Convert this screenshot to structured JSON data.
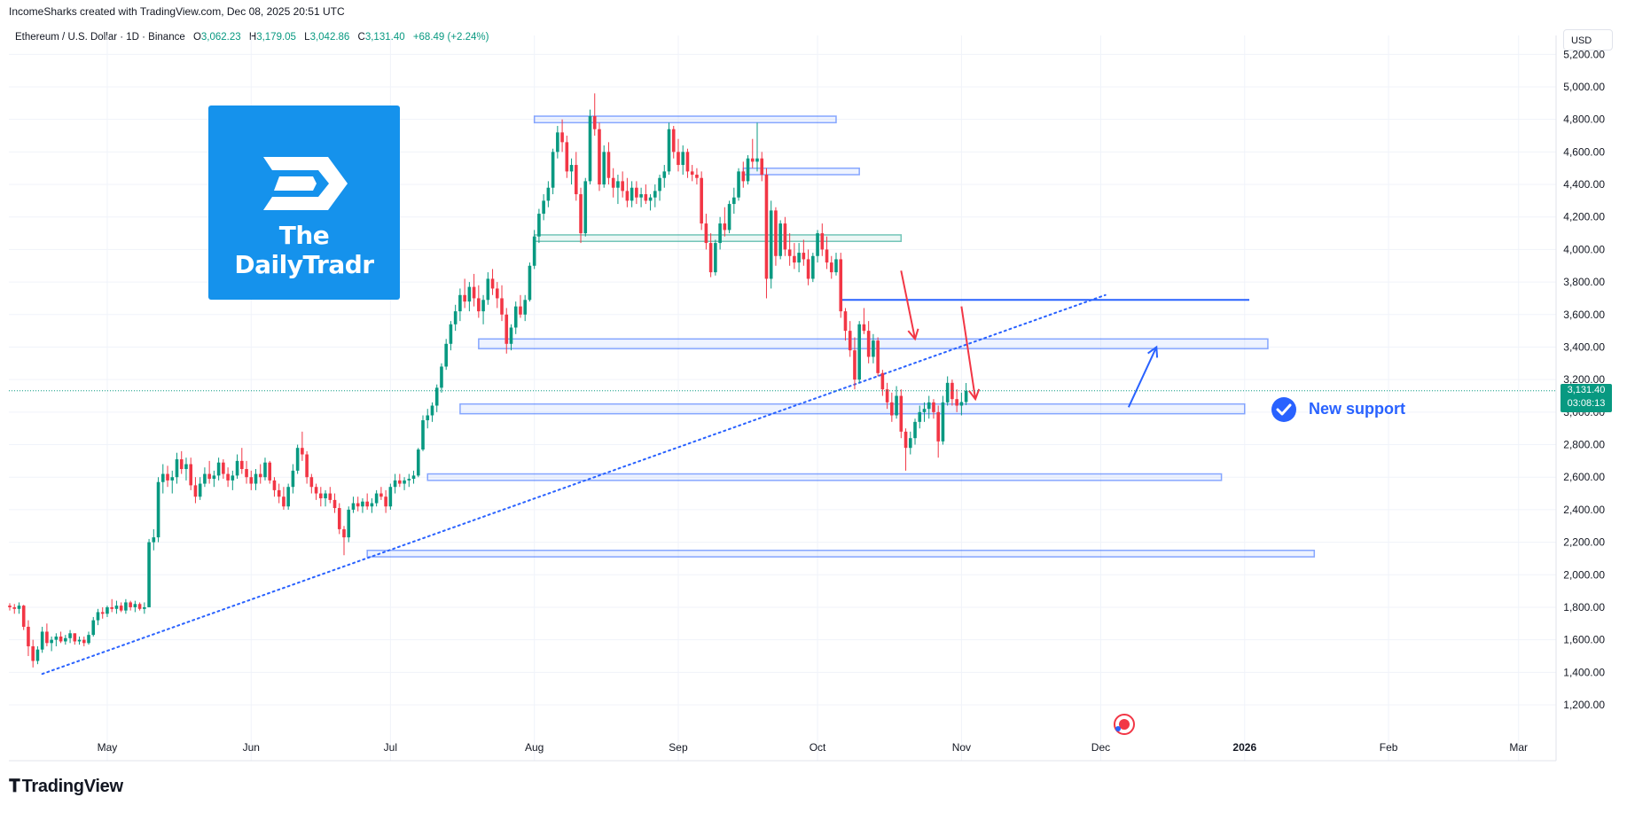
{
  "header": {
    "attribution": "IncomeSharks created with TradingView.com, Dec 08, 2025 20:51 UTC"
  },
  "symbol": {
    "name": "Ethereum / U.S. Dollar · 1D · Binance",
    "open_label": "O",
    "open": "3,062.23",
    "high_label": "H",
    "high": "3,179.05",
    "low_label": "L",
    "low": "3,042.86",
    "close_label": "C",
    "close": "3,131.40",
    "change": "+68.49 (+2.24%)"
  },
  "currency": "USD",
  "last_price": {
    "price": "3,131.40",
    "countdown": "03:08:13"
  },
  "logo": {
    "text": "The DailyTradr"
  },
  "annotation": {
    "support_label": "New support"
  },
  "footer": {
    "brand": "TradingView"
  },
  "colors": {
    "up": "#089981",
    "down": "#f23645",
    "zone_blue": "#2962ff",
    "zone_green": "#089981",
    "logo_bg": "#1592ec",
    "arrow_red": "#f23645",
    "arrow_blue": "#2962ff"
  },
  "chart_data": {
    "type": "candlestick",
    "title": "Ethereum / U.S. Dollar · 1D · Binance",
    "ylim": [
      1150,
      5250
    ],
    "price_ticks": [
      "5,200.00",
      "5,000.00",
      "4,800.00",
      "4,600.00",
      "4,400.00",
      "4,200.00",
      "4,000.00",
      "3,800.00",
      "3,600.00",
      "3,400.00",
      "3,200.00",
      "3,000.00",
      "2,800.00",
      "2,600.00",
      "2,400.00",
      "2,200.00",
      "2,000.00",
      "1,800.00",
      "1,600.00",
      "1,400.00",
      "1,200.00"
    ],
    "price_tick_values": [
      5200,
      5000,
      4800,
      4600,
      4400,
      4200,
      4000,
      3800,
      3600,
      3400,
      3200,
      3000,
      2800,
      2600,
      2400,
      2200,
      2000,
      1800,
      1600,
      1400,
      1200
    ],
    "time_ticks": [
      {
        "label": "May",
        "day": 21
      },
      {
        "label": "Jun",
        "day": 52
      },
      {
        "label": "Jul",
        "day": 82
      },
      {
        "label": "Aug",
        "day": 113
      },
      {
        "label": "Sep",
        "day": 144
      },
      {
        "label": "Oct",
        "day": 174
      },
      {
        "label": "Nov",
        "day": 205
      },
      {
        "label": "Dec",
        "day": 235
      },
      {
        "label": "2026",
        "day": 266,
        "bold": true
      },
      {
        "label": "Feb",
        "day": 297
      },
      {
        "label": "Mar",
        "day": 325
      }
    ],
    "candles": [
      [
        1810,
        1825,
        1780,
        1800
      ],
      [
        1800,
        1820,
        1760,
        1790
      ],
      [
        1790,
        1830,
        1760,
        1810
      ],
      [
        1810,
        1815,
        1660,
        1680
      ],
      [
        1680,
        1720,
        1500,
        1560
      ],
      [
        1560,
        1600,
        1430,
        1470
      ],
      [
        1470,
        1560,
        1450,
        1540
      ],
      [
        1540,
        1680,
        1520,
        1650
      ],
      [
        1650,
        1700,
        1560,
        1580
      ],
      [
        1580,
        1620,
        1530,
        1600
      ],
      [
        1600,
        1640,
        1560,
        1620
      ],
      [
        1620,
        1650,
        1580,
        1590
      ],
      [
        1590,
        1630,
        1570,
        1610
      ],
      [
        1610,
        1660,
        1580,
        1640
      ],
      [
        1640,
        1640,
        1570,
        1590
      ],
      [
        1590,
        1620,
        1570,
        1600
      ],
      [
        1600,
        1620,
        1560,
        1580
      ],
      [
        1580,
        1650,
        1570,
        1630
      ],
      [
        1630,
        1740,
        1620,
        1720
      ],
      [
        1720,
        1790,
        1690,
        1770
      ],
      [
        1770,
        1800,
        1730,
        1760
      ],
      [
        1760,
        1810,
        1740,
        1800
      ],
      [
        1800,
        1850,
        1770,
        1790
      ],
      [
        1790,
        1840,
        1760,
        1810
      ],
      [
        1810,
        1830,
        1770,
        1780
      ],
      [
        1780,
        1850,
        1760,
        1830
      ],
      [
        1830,
        1840,
        1780,
        1800
      ],
      [
        1800,
        1840,
        1770,
        1820
      ],
      [
        1820,
        1830,
        1780,
        1790
      ],
      [
        1790,
        1830,
        1760,
        1800
      ],
      [
        1800,
        2220,
        1800,
        2200
      ],
      [
        2200,
        2280,
        2150,
        2230
      ],
      [
        2230,
        2600,
        2200,
        2570
      ],
      [
        2570,
        2680,
        2500,
        2620
      ],
      [
        2620,
        2670,
        2540,
        2580
      ],
      [
        2580,
        2640,
        2500,
        2600
      ],
      [
        2600,
        2750,
        2560,
        2710
      ],
      [
        2710,
        2760,
        2620,
        2650
      ],
      [
        2650,
        2720,
        2580,
        2680
      ],
      [
        2680,
        2720,
        2520,
        2550
      ],
      [
        2550,
        2600,
        2440,
        2480
      ],
      [
        2480,
        2600,
        2460,
        2560
      ],
      [
        2560,
        2660,
        2540,
        2620
      ],
      [
        2620,
        2700,
        2560,
        2590
      ],
      [
        2590,
        2640,
        2540,
        2610
      ],
      [
        2610,
        2720,
        2580,
        2690
      ],
      [
        2690,
        2710,
        2590,
        2620
      ],
      [
        2620,
        2660,
        2540,
        2580
      ],
      [
        2580,
        2640,
        2520,
        2610
      ],
      [
        2610,
        2740,
        2590,
        2700
      ],
      [
        2700,
        2780,
        2620,
        2650
      ],
      [
        2650,
        2700,
        2560,
        2600
      ],
      [
        2600,
        2640,
        2520,
        2560
      ],
      [
        2560,
        2650,
        2520,
        2620
      ],
      [
        2620,
        2680,
        2560,
        2600
      ],
      [
        2600,
        2720,
        2580,
        2690
      ],
      [
        2690,
        2700,
        2560,
        2580
      ],
      [
        2580,
        2600,
        2480,
        2520
      ],
      [
        2520,
        2560,
        2440,
        2480
      ],
      [
        2480,
        2540,
        2400,
        2420
      ],
      [
        2420,
        2560,
        2400,
        2540
      ],
      [
        2540,
        2680,
        2500,
        2640
      ],
      [
        2640,
        2800,
        2620,
        2780
      ],
      [
        2780,
        2880,
        2700,
        2740
      ],
      [
        2740,
        2760,
        2560,
        2600
      ],
      [
        2600,
        2620,
        2500,
        2540
      ],
      [
        2540,
        2560,
        2460,
        2500
      ],
      [
        2500,
        2540,
        2420,
        2470
      ],
      [
        2470,
        2520,
        2420,
        2500
      ],
      [
        2500,
        2540,
        2440,
        2460
      ],
      [
        2460,
        2500,
        2380,
        2410
      ],
      [
        2410,
        2440,
        2250,
        2280
      ],
      [
        2280,
        2300,
        2120,
        2230
      ],
      [
        2230,
        2420,
        2200,
        2400
      ],
      [
        2400,
        2480,
        2380,
        2440
      ],
      [
        2440,
        2480,
        2390,
        2420
      ],
      [
        2420,
        2470,
        2380,
        2450
      ],
      [
        2450,
        2500,
        2400,
        2420
      ],
      [
        2420,
        2470,
        2380,
        2440
      ],
      [
        2440,
        2520,
        2420,
        2500
      ],
      [
        2500,
        2540,
        2460,
        2480
      ],
      [
        2480,
        2520,
        2380,
        2420
      ],
      [
        2420,
        2560,
        2400,
        2540
      ],
      [
        2540,
        2620,
        2500,
        2580
      ],
      [
        2580,
        2620,
        2540,
        2560
      ],
      [
        2560,
        2600,
        2520,
        2580
      ],
      [
        2580,
        2620,
        2540,
        2590
      ],
      [
        2590,
        2640,
        2560,
        2610
      ],
      [
        2610,
        2780,
        2600,
        2770
      ],
      [
        2770,
        2980,
        2760,
        2950
      ],
      [
        2950,
        3020,
        2900,
        2980
      ],
      [
        2980,
        3060,
        2940,
        3040
      ],
      [
        3040,
        3170,
        3000,
        3150
      ],
      [
        3150,
        3300,
        3120,
        3280
      ],
      [
        3280,
        3450,
        3260,
        3420
      ],
      [
        3420,
        3560,
        3380,
        3540
      ],
      [
        3540,
        3660,
        3500,
        3620
      ],
      [
        3620,
        3760,
        3560,
        3720
      ],
      [
        3720,
        3820,
        3640,
        3680
      ],
      [
        3680,
        3800,
        3620,
        3770
      ],
      [
        3770,
        3850,
        3650,
        3700
      ],
      [
        3700,
        3780,
        3580,
        3620
      ],
      [
        3620,
        3720,
        3540,
        3690
      ],
      [
        3690,
        3860,
        3660,
        3820
      ],
      [
        3820,
        3880,
        3720,
        3760
      ],
      [
        3760,
        3800,
        3640,
        3700
      ],
      [
        3700,
        3780,
        3560,
        3600
      ],
      [
        3600,
        3640,
        3360,
        3420
      ],
      [
        3420,
        3540,
        3380,
        3520
      ],
      [
        3520,
        3680,
        3480,
        3650
      ],
      [
        3650,
        3720,
        3580,
        3600
      ],
      [
        3600,
        3720,
        3560,
        3690
      ],
      [
        3690,
        3920,
        3680,
        3900
      ],
      [
        3900,
        4120,
        3880,
        4080
      ],
      [
        4080,
        4250,
        4040,
        4220
      ],
      [
        4220,
        4340,
        4180,
        4300
      ],
      [
        4300,
        4420,
        4260,
        4380
      ],
      [
        4380,
        4620,
        4340,
        4600
      ],
      [
        4600,
        4760,
        4560,
        4720
      ],
      [
        4720,
        4800,
        4600,
        4660
      ],
      [
        4660,
        4700,
        4440,
        4480
      ],
      [
        4480,
        4560,
        4400,
        4520
      ],
      [
        4520,
        4600,
        4300,
        4340
      ],
      [
        4340,
        4380,
        4040,
        4100
      ],
      [
        4100,
        4440,
        4080,
        4420
      ],
      [
        4420,
        4860,
        4400,
        4820
      ],
      [
        4820,
        4960,
        4700,
        4740
      ],
      [
        4740,
        4780,
        4360,
        4400
      ],
      [
        4400,
        4640,
        4380,
        4600
      ],
      [
        4600,
        4660,
        4400,
        4440
      ],
      [
        4440,
        4500,
        4320,
        4380
      ],
      [
        4380,
        4460,
        4280,
        4420
      ],
      [
        4420,
        4480,
        4320,
        4360
      ],
      [
        4360,
        4440,
        4260,
        4300
      ],
      [
        4300,
        4420,
        4260,
        4380
      ],
      [
        4380,
        4420,
        4280,
        4320
      ],
      [
        4320,
        4380,
        4260,
        4340
      ],
      [
        4340,
        4400,
        4280,
        4300
      ],
      [
        4300,
        4340,
        4240,
        4320
      ],
      [
        4320,
        4400,
        4260,
        4360
      ],
      [
        4360,
        4460,
        4300,
        4440
      ],
      [
        4440,
        4520,
        4380,
        4480
      ],
      [
        4480,
        4780,
        4460,
        4740
      ],
      [
        4740,
        4760,
        4560,
        4600
      ],
      [
        4600,
        4680,
        4480,
        4520
      ],
      [
        4520,
        4640,
        4460,
        4600
      ],
      [
        4600,
        4620,
        4440,
        4480
      ],
      [
        4480,
        4520,
        4420,
        4460
      ],
      [
        4460,
        4500,
        4400,
        4440
      ],
      [
        4440,
        4480,
        4120,
        4160
      ],
      [
        4160,
        4220,
        4000,
        4040
      ],
      [
        4040,
        4100,
        3830,
        3860
      ],
      [
        3860,
        4060,
        3840,
        4040
      ],
      [
        4040,
        4200,
        4000,
        4160
      ],
      [
        4160,
        4260,
        4080,
        4120
      ],
      [
        4120,
        4300,
        4100,
        4280
      ],
      [
        4280,
        4380,
        4220,
        4320
      ],
      [
        4320,
        4500,
        4300,
        4480
      ],
      [
        4480,
        4540,
        4380,
        4420
      ],
      [
        4420,
        4580,
        4400,
        4560
      ],
      [
        4560,
        4680,
        4500,
        4540
      ],
      [
        4540,
        4780,
        4480,
        4560
      ],
      [
        4560,
        4600,
        4420,
        4460
      ],
      [
        4460,
        4500,
        3700,
        3820
      ],
      [
        3820,
        4300,
        3760,
        4240
      ],
      [
        4240,
        4260,
        3900,
        3960
      ],
      [
        3960,
        4180,
        3940,
        4160
      ],
      [
        4160,
        4200,
        3960,
        4000
      ],
      [
        4000,
        4100,
        3900,
        3960
      ],
      [
        3960,
        4040,
        3880,
        3920
      ],
      [
        3920,
        4040,
        3860,
        3980
      ],
      [
        3980,
        4060,
        3900,
        3940
      ],
      [
        3940,
        4000,
        3780,
        3820
      ],
      [
        3820,
        3980,
        3800,
        3960
      ],
      [
        3960,
        4120,
        3920,
        4100
      ],
      [
        4100,
        4160,
        3960,
        4000
      ],
      [
        4000,
        4080,
        3880,
        3920
      ],
      [
        3920,
        3960,
        3820,
        3860
      ],
      [
        3860,
        3980,
        3840,
        3940
      ],
      [
        3940,
        3980,
        3580,
        3620
      ],
      [
        3620,
        3640,
        3440,
        3500
      ],
      [
        3500,
        3560,
        3340,
        3380
      ],
      [
        3380,
        3460,
        3140,
        3200
      ],
      [
        3200,
        3560,
        3180,
        3540
      ],
      [
        3540,
        3640,
        3480,
        3500
      ],
      [
        3500,
        3560,
        3300,
        3340
      ],
      [
        3340,
        3480,
        3300,
        3440
      ],
      [
        3440,
        3460,
        3220,
        3240
      ],
      [
        3240,
        3260,
        3100,
        3140
      ],
      [
        3140,
        3180,
        3020,
        3060
      ],
      [
        3060,
        3120,
        2940,
        2980
      ],
      [
        2980,
        3160,
        2960,
        3100
      ],
      [
        3100,
        3140,
        2840,
        2880
      ],
      [
        2880,
        2900,
        2640,
        2780
      ],
      [
        2780,
        2880,
        2740,
        2840
      ],
      [
        2840,
        2960,
        2800,
        2940
      ],
      [
        2940,
        3040,
        2900,
        3000
      ],
      [
        3000,
        3060,
        2940,
        3020
      ],
      [
        3020,
        3100,
        2960,
        3060
      ],
      [
        3060,
        3080,
        2960,
        3000
      ],
      [
        3000,
        3040,
        2720,
        2820
      ],
      [
        2820,
        3100,
        2800,
        3060
      ],
      [
        3060,
        3220,
        3040,
        3180
      ],
      [
        3180,
        3200,
        3040,
        3080
      ],
      [
        3080,
        3140,
        3000,
        3040
      ],
      [
        3040,
        3120,
        2980,
        3062
      ],
      [
        3062,
        3179,
        3043,
        3131
      ]
    ],
    "zones": [
      {
        "kind": "resistance",
        "color": "blue",
        "low": 4780,
        "high": 4820,
        "from_day": 113,
        "to_day": 178
      },
      {
        "kind": "resistance",
        "color": "blue",
        "low": 4460,
        "high": 4500,
        "from_day": 158,
        "to_day": 183
      },
      {
        "kind": "support",
        "color": "green",
        "low": 4050,
        "high": 4090,
        "from_day": 113,
        "to_day": 192
      },
      {
        "kind": "support",
        "color": "blue",
        "low": 3390,
        "high": 3450,
        "from_day": 101,
        "to_day": 271
      },
      {
        "kind": "support",
        "color": "blue",
        "low": 2990,
        "high": 3050,
        "from_day": 97,
        "to_day": 266
      },
      {
        "kind": "support",
        "color": "blue",
        "low": 2580,
        "high": 2620,
        "from_day": 90,
        "to_day": 261
      },
      {
        "kind": "support",
        "color": "blue",
        "low": 2110,
        "high": 2150,
        "from_day": 77,
        "to_day": 281
      }
    ],
    "horizontal_line": {
      "price": 3690,
      "from_day": 179,
      "to_day": 267
    },
    "trendline": {
      "from_day": 7,
      "from_price": 1390,
      "to_day": 236,
      "to_price": 3720
    },
    "down_arrows": [
      {
        "from_day": 192,
        "from_price": 3870,
        "to_day": 195,
        "to_price": 3450
      },
      {
        "from_day": 205,
        "from_price": 3650,
        "to_day": 208,
        "to_price": 3080
      }
    ],
    "up_arrow": {
      "from_day": 241,
      "from_price": 3030,
      "to_day": 247,
      "to_price": 3400
    },
    "last_price": 3131.4
  }
}
